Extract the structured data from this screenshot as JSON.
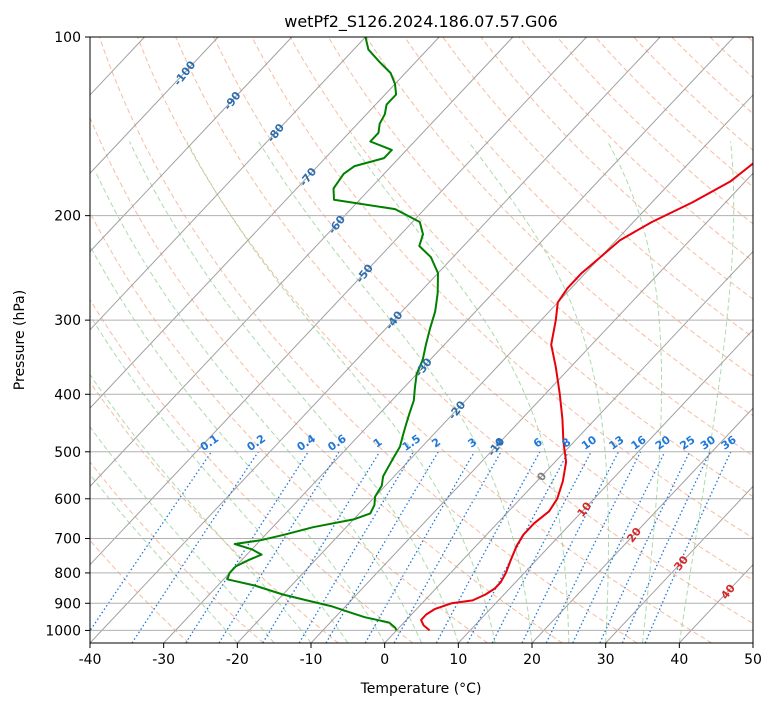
{
  "chart_data": {
    "type": "line",
    "subtype": "skew-t log-p diagram",
    "title": "wetPf2_S126.2024.186.07.57.G06",
    "xlabel": "Temperature (°C)",
    "ylabel": "Pressure (hPa)",
    "xlim": [
      -40,
      50
    ],
    "ylim": [
      1050,
      100
    ],
    "y_scale": "log",
    "grid": true,
    "x_ticks": [
      -40,
      -30,
      -20,
      -10,
      0,
      10,
      20,
      30,
      40,
      50
    ],
    "y_ticks": [
      100,
      200,
      300,
      400,
      500,
      600,
      700,
      800,
      900,
      1000
    ],
    "series": [
      {
        "name": "Temperature",
        "color": "#e8000b",
        "points": [
          [
            1000,
            4.5
          ],
          [
            980,
            3.0
          ],
          [
            960,
            2.0
          ],
          [
            940,
            2.0
          ],
          [
            920,
            2.5
          ],
          [
            900,
            4.0
          ],
          [
            890,
            6.5
          ],
          [
            870,
            7.5
          ],
          [
            850,
            8.0
          ],
          [
            830,
            8.0
          ],
          [
            800,
            7.5
          ],
          [
            760,
            6.5
          ],
          [
            720,
            5.5
          ],
          [
            690,
            5.0
          ],
          [
            660,
            5.0
          ],
          [
            630,
            5.5
          ],
          [
            600,
            5.0
          ],
          [
            560,
            3.5
          ],
          [
            520,
            1.5
          ],
          [
            480,
            -1.5
          ],
          [
            440,
            -4.5
          ],
          [
            400,
            -8.0
          ],
          [
            360,
            -12.0
          ],
          [
            330,
            -15.5
          ],
          [
            300,
            -18.0
          ],
          [
            280,
            -20.0
          ],
          [
            265,
            -20.5
          ],
          [
            250,
            -20.5
          ],
          [
            235,
            -20.0
          ],
          [
            220,
            -19.5
          ],
          [
            205,
            -17.5
          ],
          [
            190,
            -14.5
          ],
          [
            175,
            -12.0
          ],
          [
            160,
            -11.0
          ],
          [
            145,
            -10.5
          ],
          [
            130,
            -11.0
          ],
          [
            115,
            -11.5
          ],
          [
            105,
            -12.5
          ],
          [
            100,
            -13.5
          ]
        ]
      },
      {
        "name": "Dewpoint",
        "color": "#008000",
        "points": [
          [
            1000,
            0.0
          ],
          [
            990,
            -0.5
          ],
          [
            970,
            -2.0
          ],
          [
            950,
            -6.0
          ],
          [
            930,
            -9.0
          ],
          [
            910,
            -12.0
          ],
          [
            890,
            -16.0
          ],
          [
            870,
            -20.0
          ],
          [
            840,
            -25.0
          ],
          [
            820,
            -29.5
          ],
          [
            800,
            -30.0
          ],
          [
            780,
            -30.0
          ],
          [
            760,
            -29.0
          ],
          [
            745,
            -28.0
          ],
          [
            730,
            -30.0
          ],
          [
            715,
            -33.0
          ],
          [
            705,
            -30.0
          ],
          [
            690,
            -27.5
          ],
          [
            670,
            -24.5
          ],
          [
            650,
            -20.0
          ],
          [
            635,
            -18.5
          ],
          [
            615,
            -19.0
          ],
          [
            595,
            -20.0
          ],
          [
            570,
            -20.5
          ],
          [
            550,
            -21.5
          ],
          [
            530,
            -22.0
          ],
          [
            510,
            -22.5
          ],
          [
            490,
            -23.0
          ],
          [
            470,
            -24.0
          ],
          [
            450,
            -25.0
          ],
          [
            430,
            -26.0
          ],
          [
            410,
            -27.0
          ],
          [
            390,
            -28.5
          ],
          [
            370,
            -30.0
          ],
          [
            350,
            -31.0
          ],
          [
            330,
            -32.5
          ],
          [
            310,
            -34.0
          ],
          [
            290,
            -35.5
          ],
          [
            270,
            -37.5
          ],
          [
            250,
            -40.0
          ],
          [
            235,
            -43.0
          ],
          [
            225,
            -46.0
          ],
          [
            215,
            -47.0
          ],
          [
            205,
            -49.0
          ],
          [
            195,
            -54.0
          ],
          [
            188,
            -63.5
          ],
          [
            180,
            -65.0
          ],
          [
            170,
            -65.5
          ],
          [
            165,
            -65.0
          ],
          [
            160,
            -62.0
          ],
          [
            155,
            -62.0
          ],
          [
            150,
            -66.0
          ],
          [
            145,
            -66.0
          ],
          [
            140,
            -67.0
          ],
          [
            135,
            -67.5
          ],
          [
            130,
            -68.5
          ],
          [
            125,
            -68.5
          ],
          [
            120,
            -70.0
          ],
          [
            115,
            -72.0
          ],
          [
            110,
            -75.0
          ],
          [
            105,
            -78.0
          ],
          [
            100,
            -80.0
          ]
        ]
      }
    ],
    "isotherms": {
      "color": "#a0a0a0",
      "step": 10
    },
    "dry_adiabats": {
      "color": "#f4a582"
    },
    "moist_adiabats": {
      "color": "#8fcf8f"
    },
    "mixing_ratio_lines": {
      "color": "#1f77d8",
      "values": [
        "0.1",
        "0.2",
        "0.4",
        "0.6",
        "1",
        "1.5",
        "2",
        "3",
        "4",
        "6",
        "8",
        "10",
        "13",
        "16",
        "20",
        "25",
        "30",
        "36"
      ]
    },
    "annotations": {
      "blue_isotherm_labels": [
        "-100",
        "-90",
        "-80",
        "-70",
        "-60",
        "-50",
        "-40",
        "-30",
        "-20",
        "-10"
      ],
      "zero_label": "0",
      "red_isotherm_labels": [
        "10",
        "20",
        "30",
        "40"
      ],
      "blue_color": "#2d6dad",
      "red_color": "#d62728",
      "zero_color": "#808080"
    }
  }
}
